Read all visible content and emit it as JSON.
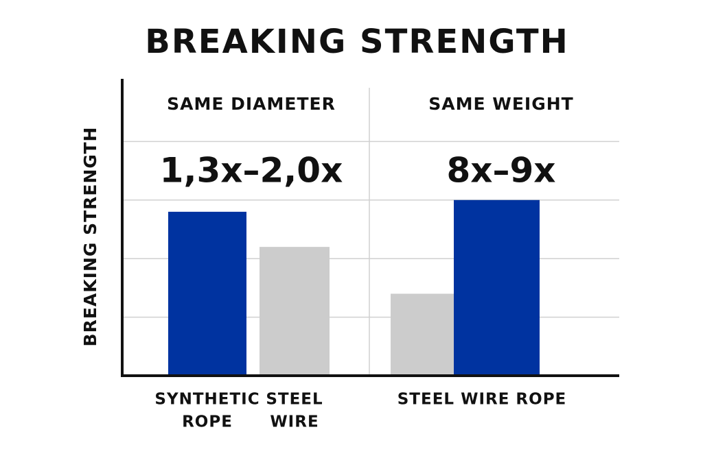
{
  "chart_data": {
    "type": "bar",
    "title": "BREAKING STRENGTH",
    "y_label": "BREAKING STRENGTH",
    "ylim": [
      0,
      5
    ],
    "yticks": [
      1,
      2,
      3,
      4
    ],
    "grid": true,
    "panels": [
      {
        "heading": "SAME DIAMETER",
        "ratio": "1,3x–2,0x",
        "bars": [
          {
            "color": "#0033a0",
            "value": 2.8
          },
          {
            "color": "#cccccc",
            "value": 2.2
          }
        ],
        "labels": [
          [
            "SYNTHETIC",
            "ROPE"
          ],
          [
            "STEEL",
            "WIRE"
          ]
        ]
      },
      {
        "heading": "SAME WEIGHT",
        "ratio": "8x–9x",
        "bars": [
          {
            "color": "#cccccc",
            "value": 1.4
          },
          {
            "color": "#0033a0",
            "value": 3.0
          }
        ],
        "labels": [
          [
            "STEEL WIRE ROPE"
          ]
        ]
      }
    ]
  }
}
